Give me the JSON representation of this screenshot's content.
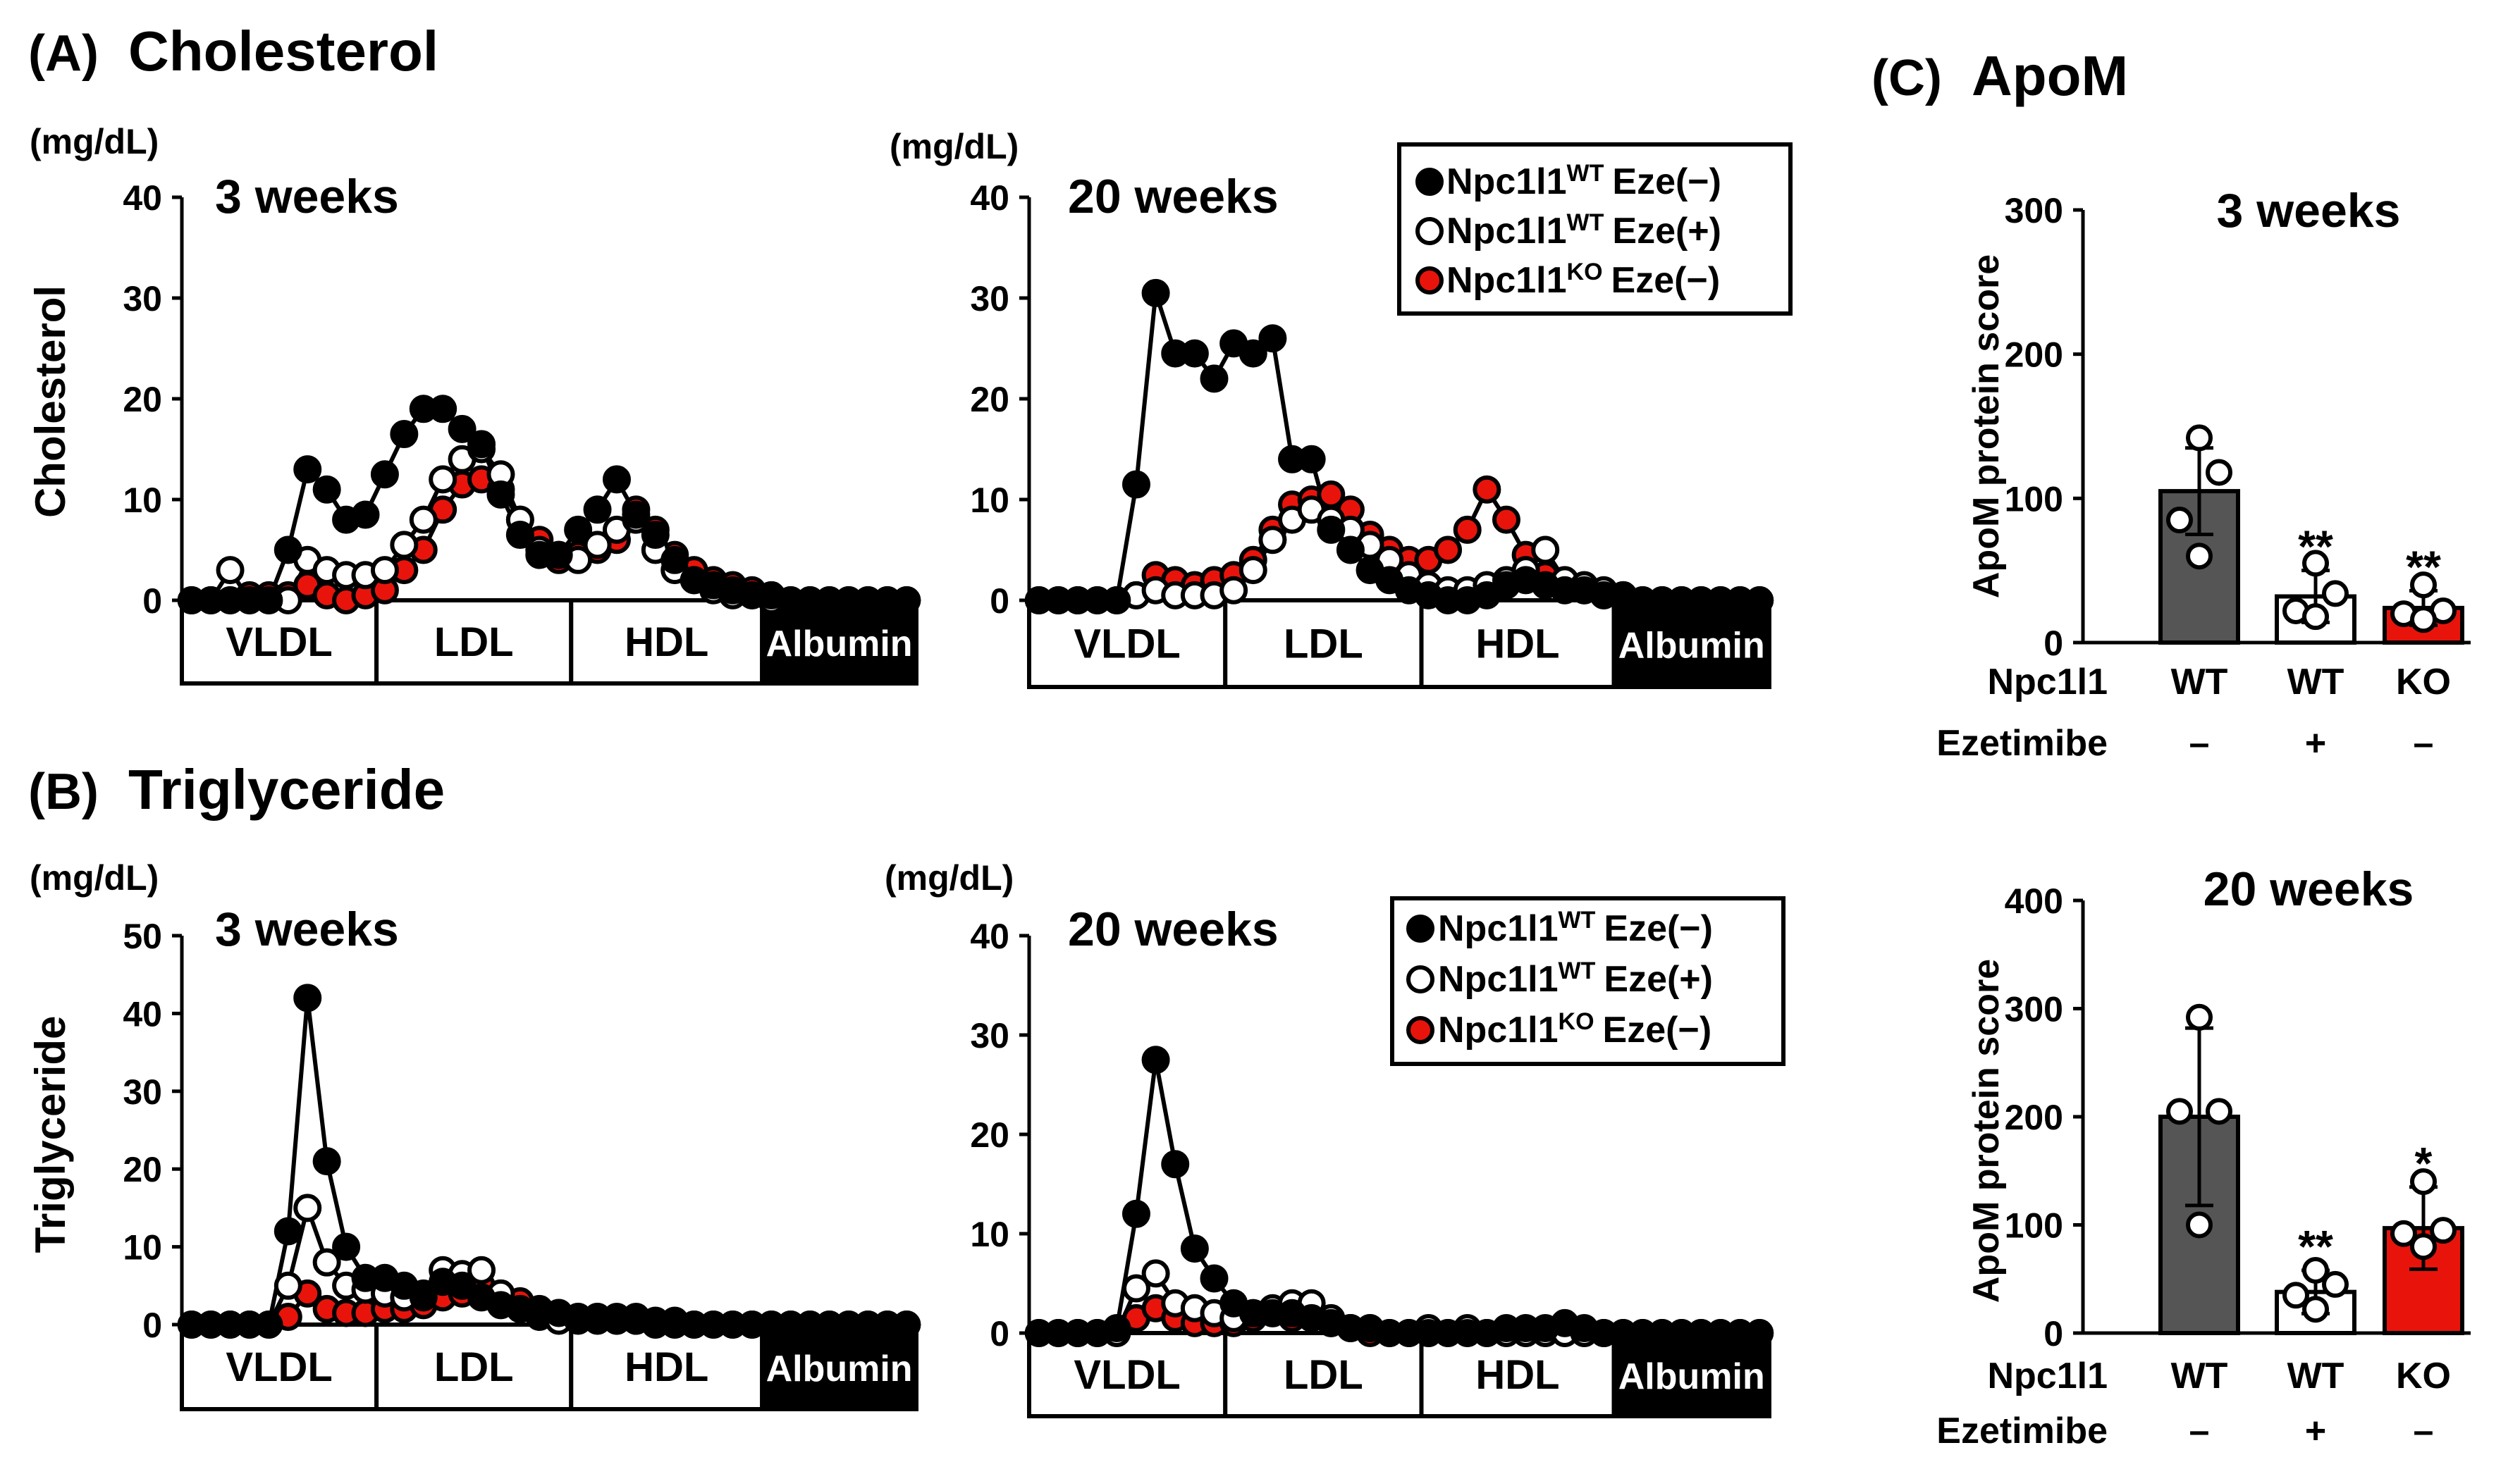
{
  "colors": {
    "black": "#000000",
    "white": "#ffffff",
    "red": "#e8140c",
    "dark_bar": "#555555"
  },
  "panel_labels": {
    "A": "(A)",
    "B": "(B)",
    "C": "(C)"
  },
  "panel_titles": {
    "A": "Cholesterol",
    "B": "Triglyceride",
    "C": "ApoM"
  },
  "legend_text": {
    "gene": "Npc1l1",
    "wt": "WT",
    "ko": "KO",
    "eze_neg": "Eze(−)",
    "eze_pos": "Eze(+)"
  },
  "fraction_labels": [
    "VLDL",
    "LDL",
    "HDL",
    "Albumin"
  ],
  "chart_data": [
    {
      "id": "A1",
      "type": "line",
      "title": "3 weeks",
      "ylabel": "Cholesterol",
      "unit": "(mg/dL)",
      "ylim": [
        0,
        40
      ],
      "yticks": [
        0,
        10,
        20,
        30,
        40
      ],
      "x": [
        1,
        2,
        3,
        4,
        5,
        6,
        7,
        8,
        9,
        10,
        11,
        12,
        13,
        14,
        15,
        16,
        17,
        18,
        19,
        20,
        21,
        22,
        23,
        24,
        25,
        26,
        27,
        28,
        29,
        30,
        31,
        32,
        33,
        34,
        35,
        36,
        37,
        38
      ],
      "series": [
        {
          "name": "Npc1l1 WT Eze(−)",
          "style": "black",
          "values": [
            0,
            0,
            0,
            0,
            0,
            5,
            13,
            11,
            8,
            8.5,
            12.5,
            16.5,
            19,
            19,
            17,
            15.5,
            10.5,
            6.5,
            4.5,
            4.5,
            7,
            9,
            12,
            8.5,
            6.5,
            4,
            2,
            1.5,
            1,
            0.5,
            0.5,
            0,
            0,
            0,
            0,
            0,
            0,
            0
          ]
        },
        {
          "name": "Npc1l1 WT Eze(+)",
          "style": "white",
          "values": [
            0,
            0,
            3,
            0,
            0,
            0,
            4,
            3,
            2.5,
            2.5,
            3,
            5.5,
            8,
            12,
            14,
            15,
            12.5,
            8,
            5,
            4.5,
            4,
            5.5,
            7,
            8,
            5,
            3,
            2,
            1,
            0.5,
            0.5,
            0,
            0,
            0,
            0,
            0,
            0,
            0,
            0
          ]
        },
        {
          "name": "Npc1l1 KO Eze(−)",
          "style": "red",
          "values": [
            0,
            0,
            0,
            0.5,
            0.5,
            0.5,
            1.5,
            0.5,
            0,
            0.5,
            1,
            3,
            5,
            9,
            11.5,
            12,
            11,
            8,
            6,
            4,
            4.5,
            5,
            6,
            9,
            7,
            4.5,
            3,
            2,
            1.5,
            1,
            0.5,
            0,
            0,
            0,
            0,
            0,
            0,
            0
          ]
        }
      ],
      "fractions": [
        "VLDL",
        "LDL",
        "HDL",
        "Albumin"
      ]
    },
    {
      "id": "A2",
      "type": "line",
      "title": "20 weeks",
      "unit": "(mg/dL)",
      "ylim": [
        0,
        40
      ],
      "yticks": [
        0,
        10,
        20,
        30,
        40
      ],
      "x": [
        1,
        2,
        3,
        4,
        5,
        6,
        7,
        8,
        9,
        10,
        11,
        12,
        13,
        14,
        15,
        16,
        17,
        18,
        19,
        20,
        21,
        22,
        23,
        24,
        25,
        26,
        27,
        28,
        29,
        30,
        31,
        32,
        33,
        34,
        35,
        36,
        37,
        38
      ],
      "series": [
        {
          "name": "Npc1l1 WT Eze(−)",
          "style": "black",
          "values": [
            0,
            0,
            0,
            0,
            0,
            11.5,
            30.5,
            24.5,
            24.5,
            22,
            25.5,
            24.5,
            26,
            14,
            14,
            7,
            5,
            3,
            2,
            1,
            0.5,
            0,
            0,
            0.5,
            1.5,
            2,
            1.5,
            1,
            1,
            0.5,
            0.5,
            0,
            0,
            0,
            0,
            0,
            0,
            0
          ]
        },
        {
          "name": "Npc1l1 WT Eze(+)",
          "style": "white",
          "values": [
            0,
            0,
            0,
            0,
            0,
            0.5,
            1,
            0.5,
            0.5,
            0.5,
            1,
            3,
            6,
            8,
            9,
            8,
            7,
            5.5,
            4,
            2.5,
            1.5,
            1,
            1,
            1.5,
            2,
            3,
            5,
            2,
            1.5,
            1,
            0.5,
            0,
            0,
            0,
            0,
            0,
            0,
            0
          ]
        },
        {
          "name": "Npc1l1 KO Eze(−)",
          "style": "red",
          "values": [
            0,
            0,
            0,
            0,
            0,
            0.5,
            2.5,
            2,
            1.5,
            2,
            2.5,
            4,
            7,
            9.5,
            10,
            10.5,
            9,
            6.5,
            5,
            4,
            4,
            5,
            7,
            11,
            8,
            4.5,
            2.5,
            1.5,
            1,
            0.5,
            0.5,
            0,
            0,
            0,
            0,
            0,
            0,
            0
          ]
        }
      ],
      "fractions": [
        "VLDL",
        "LDL",
        "HDL",
        "Albumin"
      ]
    },
    {
      "id": "B1",
      "type": "line",
      "title": "3 weeks",
      "ylabel": "Triglyceride",
      "unit": "(mg/dL)",
      "ylim": [
        0,
        50
      ],
      "yticks": [
        0,
        10,
        20,
        30,
        40,
        50
      ],
      "x": [
        1,
        2,
        3,
        4,
        5,
        6,
        7,
        8,
        9,
        10,
        11,
        12,
        13,
        14,
        15,
        16,
        17,
        18,
        19,
        20,
        21,
        22,
        23,
        24,
        25,
        26,
        27,
        28,
        29,
        30,
        31,
        32,
        33,
        34,
        35,
        36,
        37,
        38
      ],
      "series": [
        {
          "name": "Npc1l1 WT Eze(−)",
          "style": "black",
          "values": [
            0,
            0,
            0,
            0,
            0,
            12,
            42,
            21,
            10,
            6,
            6,
            5,
            4,
            5.5,
            5,
            3.5,
            2.5,
            2,
            1.5,
            1.5,
            1,
            1,
            1,
            1,
            0.5,
            0.5,
            0,
            0,
            0,
            0,
            0,
            0,
            0,
            0,
            0,
            0,
            0,
            0
          ]
        },
        {
          "name": "Npc1l1 WT Eze(+)",
          "style": "white",
          "values": [
            0,
            0,
            0,
            0,
            0,
            5,
            15,
            8,
            5,
            4.5,
            4,
            3.5,
            3.5,
            7,
            6.5,
            7,
            4,
            2,
            1,
            0.5,
            0.5,
            0.5,
            0.5,
            0.5,
            0,
            0,
            0,
            0,
            0,
            0,
            0,
            0,
            0,
            0,
            0,
            0,
            0,
            0
          ]
        },
        {
          "name": "Npc1l1 KO Eze(−)",
          "style": "red",
          "values": [
            0,
            0,
            0,
            0,
            0,
            1,
            4,
            2,
            1.5,
            1.5,
            2,
            2,
            2.5,
            3.5,
            4,
            5,
            4,
            3,
            2,
            1.5,
            1,
            1,
            0.5,
            0.5,
            0,
            0,
            0,
            0,
            0,
            0,
            0,
            0,
            0,
            0,
            0,
            0,
            0,
            0
          ]
        }
      ],
      "fractions": [
        "VLDL",
        "LDL",
        "HDL",
        "Albumin"
      ]
    },
    {
      "id": "B2",
      "type": "line",
      "title": "20 weeks",
      "unit": "(mg/dL)",
      "ylim": [
        0,
        40
      ],
      "yticks": [
        0,
        10,
        20,
        30,
        40
      ],
      "x": [
        1,
        2,
        3,
        4,
        5,
        6,
        7,
        8,
        9,
        10,
        11,
        12,
        13,
        14,
        15,
        16,
        17,
        18,
        19,
        20,
        21,
        22,
        23,
        24,
        25,
        26,
        27,
        28,
        29,
        30,
        31,
        32,
        33,
        34,
        35,
        36,
        37,
        38
      ],
      "series": [
        {
          "name": "Npc1l1 WT Eze(−)",
          "style": "black",
          "values": [
            0,
            0,
            0,
            0,
            0.5,
            12,
            27.5,
            17,
            8.5,
            5.5,
            3,
            2,
            2,
            2,
            1.5,
            1,
            0.5,
            0.5,
            0,
            0,
            0,
            0,
            0,
            0,
            0.5,
            0.5,
            0.5,
            1,
            0.5,
            0,
            0,
            0,
            0,
            0,
            0,
            0,
            0,
            0
          ]
        },
        {
          "name": "Npc1l1 WT Eze(+)",
          "style": "white",
          "values": [
            0,
            0,
            0,
            0,
            0,
            4.5,
            6,
            3,
            2.5,
            2,
            1.5,
            2,
            2.5,
            3,
            3,
            1.5,
            0.5,
            0.5,
            0,
            0,
            0.5,
            0,
            0.5,
            0,
            0,
            0,
            0,
            0,
            0,
            0,
            0,
            0,
            0,
            0,
            0,
            0,
            0,
            0
          ]
        },
        {
          "name": "Npc1l1 KO Eze(−)",
          "style": "red",
          "values": [
            0,
            0,
            0,
            0,
            0,
            1.5,
            2.5,
            1.5,
            1,
            1,
            1,
            1.5,
            2,
            1.5,
            1.5,
            1,
            0.5,
            0,
            0,
            0,
            0,
            0,
            0,
            0,
            0,
            0,
            0,
            0,
            0,
            0,
            0,
            0,
            0,
            0,
            0,
            0,
            0,
            0
          ]
        }
      ],
      "fractions": [
        "VLDL",
        "LDL",
        "HDL",
        "Albumin"
      ]
    },
    {
      "id": "C1",
      "type": "bar",
      "title": "3 weeks",
      "ylabel": "ApoM protein score",
      "ylim": [
        0,
        300
      ],
      "yticks": [
        0,
        100,
        200,
        300
      ],
      "categories": [
        "WT",
        "WT",
        "KO"
      ],
      "ezetimibe": [
        "–",
        "+",
        "–"
      ],
      "values": [
        105,
        32,
        24
      ],
      "error_sd": [
        30,
        18,
        12
      ],
      "points": [
        [
          142,
          118,
          85,
          60
        ],
        [
          55,
          34,
          22,
          18
        ],
        [
          40,
          22,
          20,
          16
        ]
      ],
      "significance": [
        "",
        "**",
        "**"
      ],
      "bar_styles": [
        "dark",
        "white",
        "red"
      ],
      "row_labels": [
        "Npc1l1",
        "Ezetimibe"
      ]
    },
    {
      "id": "C2",
      "type": "bar",
      "title": "20 weeks",
      "ylabel": "ApoM protein score",
      "ylim": [
        0,
        400
      ],
      "yticks": [
        0,
        100,
        200,
        300,
        400
      ],
      "categories": [
        "WT",
        "WT",
        "KO"
      ],
      "ezetimibe": [
        "–",
        "+",
        "–"
      ],
      "values": [
        200,
        38,
        97
      ],
      "error_sd": [
        82,
        20,
        38
      ],
      "points": [
        [
          292,
          205,
          205,
          100
        ],
        [
          58,
          45,
          35,
          22
        ],
        [
          140,
          95,
          92,
          80
        ]
      ],
      "significance": [
        "",
        "**",
        "*"
      ],
      "bar_styles": [
        "dark",
        "white",
        "red"
      ],
      "row_labels": [
        "Npc1l1",
        "Ezetimibe"
      ]
    }
  ]
}
